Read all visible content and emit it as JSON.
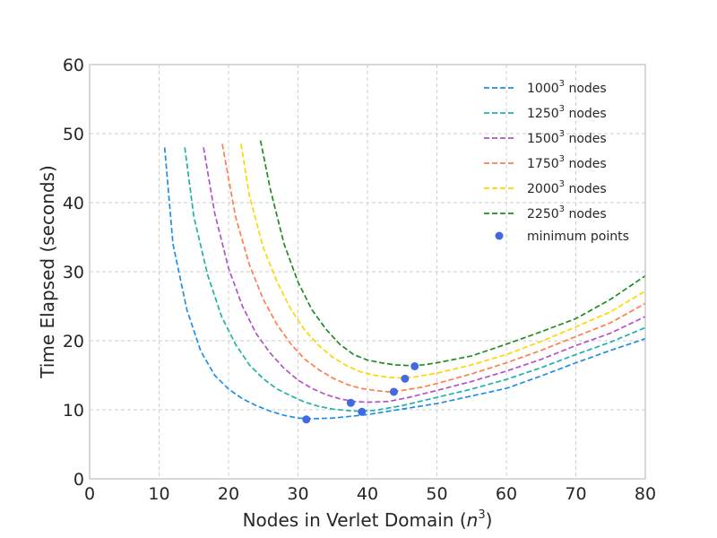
{
  "chart_data": {
    "type": "line",
    "title": "",
    "xlabel": "Nodes in Verlet Domain",
    "xlabel_math": "n",
    "xlabel_exp": "3",
    "ylabel": "Time Elapsed (seconds)",
    "xlim": [
      0,
      80
    ],
    "ylim": [
      0,
      60
    ],
    "xticks": [
      0,
      10,
      20,
      30,
      40,
      50,
      60,
      70,
      80
    ],
    "yticks": [
      0,
      10,
      20,
      30,
      40,
      50,
      60
    ],
    "grid": true,
    "legend_position": "top-right",
    "series": [
      {
        "name_base": "1000",
        "name_exp": "3",
        "name_suffix": " nodes",
        "color": "#1f8fe6",
        "x": [
          10.8,
          12,
          14,
          16,
          18,
          20,
          22,
          24,
          26,
          28,
          30,
          32,
          35,
          40,
          45,
          50,
          55,
          60,
          65,
          70,
          75,
          80
        ],
        "y": [
          48,
          34,
          24.5,
          18.5,
          15,
          13,
          11.6,
          10.6,
          9.8,
          9.2,
          8.8,
          8.7,
          8.8,
          9.3,
          10.1,
          10.9,
          12.0,
          13.1,
          14.9,
          16.8,
          18.6,
          20.3
        ]
      },
      {
        "name_base": "1250",
        "name_exp": "3",
        "name_suffix": " nodes",
        "color": "#20b2aa",
        "x": [
          13.7,
          15,
          17,
          19,
          21,
          23,
          25,
          27,
          29,
          31,
          33,
          35,
          38,
          41,
          45,
          50,
          55,
          60,
          65,
          70,
          75,
          80
        ],
        "y": [
          48,
          38,
          29.5,
          23.5,
          19.5,
          16.5,
          14.5,
          13,
          12,
          11.1,
          10.5,
          10.1,
          9.8,
          9.9,
          10.6,
          11.8,
          13.0,
          14.4,
          16.1,
          18.0,
          19.8,
          21.9
        ]
      },
      {
        "name_base": "1500",
        "name_exp": "3",
        "name_suffix": " nodes",
        "color": "#b452cd",
        "x": [
          16.4,
          18,
          20,
          22,
          24,
          26,
          28,
          30,
          32,
          34,
          36,
          38,
          40,
          43,
          46,
          50,
          55,
          60,
          65,
          70,
          75,
          80
        ],
        "y": [
          48,
          38.5,
          30.5,
          25,
          21,
          18.2,
          16,
          14.3,
          13.1,
          12.2,
          11.6,
          11.2,
          11.1,
          11.2,
          11.8,
          12.8,
          14.1,
          15.6,
          17.3,
          19.3,
          21.1,
          23.5
        ]
      },
      {
        "name_base": "1750",
        "name_exp": "3",
        "name_suffix": " nodes",
        "color": "#ff7f50",
        "x": [
          19.1,
          21,
          23,
          25,
          27,
          29,
          31,
          33,
          35,
          37,
          39,
          41,
          43,
          45,
          48,
          50,
          55,
          60,
          65,
          70,
          75,
          80
        ],
        "y": [
          48.5,
          38,
          31,
          26,
          22.3,
          19.5,
          17.3,
          15.8,
          14.6,
          13.7,
          13.1,
          12.8,
          12.6,
          12.8,
          13.3,
          13.8,
          15.2,
          16.8,
          18.6,
          20.6,
          22.6,
          25.4
        ]
      },
      {
        "name_base": "2000",
        "name_exp": "3",
        "name_suffix": " nodes",
        "color": "#ffd700",
        "x": [
          21.8,
          23,
          25,
          27,
          29,
          31,
          33,
          35,
          37,
          39,
          41,
          43,
          45,
          47,
          50,
          55,
          60,
          65,
          70,
          75,
          80
        ],
        "y": [
          48.5,
          41,
          33.5,
          28.5,
          24.5,
          21.5,
          19.3,
          17.6,
          16.4,
          15.5,
          15,
          14.7,
          14.6,
          14.8,
          15.3,
          16.5,
          18.0,
          19.9,
          22.0,
          24.2,
          27.2
        ]
      },
      {
        "name_base": "2250",
        "name_exp": "3",
        "name_suffix": " nodes",
        "color": "#228b22",
        "x": [
          24.6,
          26,
          28,
          30,
          32,
          34,
          36,
          38,
          40,
          42,
          44,
          46,
          48,
          50,
          55,
          60,
          65,
          70,
          75,
          80
        ],
        "y": [
          49,
          42,
          34,
          28.5,
          24.5,
          21.7,
          19.5,
          18,
          17.2,
          16.8,
          16.5,
          16.4,
          16.5,
          16.8,
          17.8,
          19.5,
          21.3,
          23.2,
          26.0,
          29.4
        ]
      }
    ],
    "minimum_points": {
      "name": "minimum points",
      "color": "#4169e1",
      "x": [
        31.2,
        39.2,
        37.6,
        43.8,
        45.4,
        46.8
      ],
      "y": [
        8.6,
        9.7,
        11.0,
        12.6,
        14.5,
        16.3
      ]
    }
  }
}
